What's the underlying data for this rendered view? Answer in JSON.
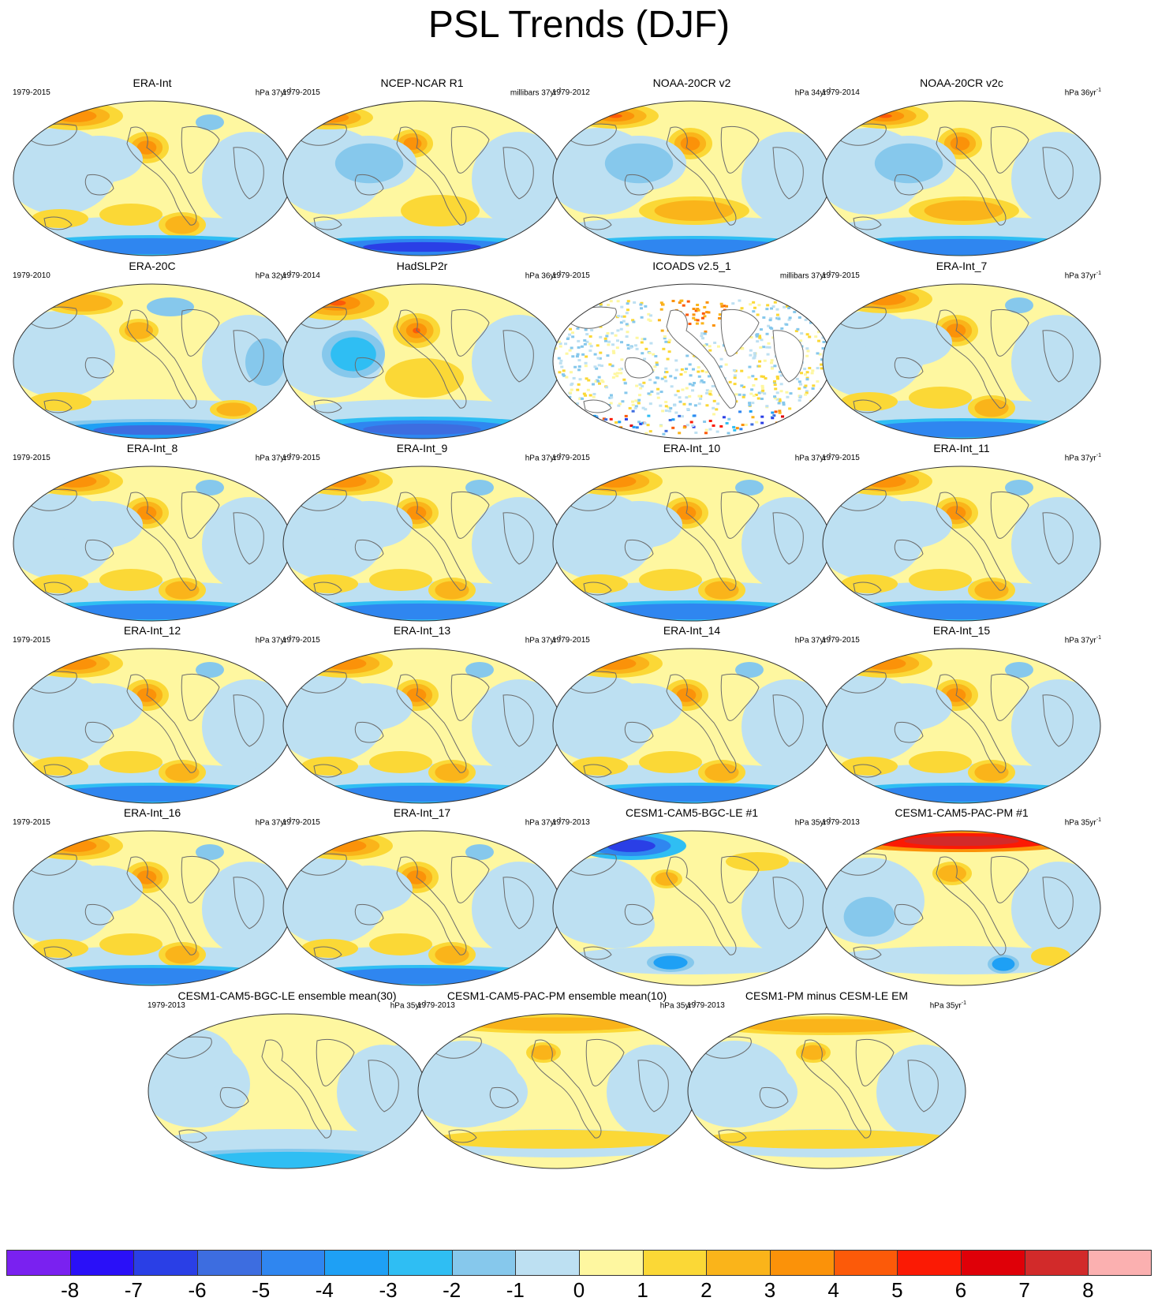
{
  "title": "PSL Trends (DJF)",
  "panels": [
    {
      "title": "ERA-Int",
      "years": "1979-2015",
      "units_prefix": "hPa 37yr",
      "style": "era",
      "hi": 4.5,
      "lo": -4.5
    },
    {
      "title": "NCEP-NCAR R1",
      "years": "1979-2015",
      "units_prefix": "millibars 37yr",
      "style": "ncep",
      "hi": 4,
      "lo": -7
    },
    {
      "title": "NOAA-20CR v2",
      "years": "1979-2012",
      "units_prefix": "hPa 34yr",
      "style": "noaa",
      "hi": 5,
      "lo": -5
    },
    {
      "title": "NOAA-20CR v2c",
      "years": "1979-2014",
      "units_prefix": "hPa 36yr",
      "style": "noaa",
      "hi": 6,
      "lo": -5
    },
    {
      "title": "ERA-20C",
      "years": "1979-2010",
      "units_prefix": "hPa 32yr",
      "style": "era20c",
      "hi": 3,
      "lo": -6
    },
    {
      "title": "HadSLP2r",
      "years": "1979-2014",
      "units_prefix": "hPa 36yr",
      "style": "had",
      "hi": 5.5,
      "lo": -6
    },
    {
      "title": "ICOADS v2.5_1",
      "years": "1979-2015",
      "units_prefix": "millibars 37yr",
      "style": "icoads",
      "hi": 6,
      "lo": -6
    },
    {
      "title": "ERA-Int_7",
      "years": "1979-2015",
      "units_prefix": "hPa 37yr",
      "style": "era",
      "hi": 4.5,
      "lo": -4.5
    },
    {
      "title": "ERA-Int_8",
      "years": "1979-2015",
      "units_prefix": "hPa 37yr",
      "style": "era",
      "hi": 4.5,
      "lo": -4.5
    },
    {
      "title": "ERA-Int_9",
      "years": "1979-2015",
      "units_prefix": "hPa 37yr",
      "style": "era",
      "hi": 4.5,
      "lo": -4.5
    },
    {
      "title": "ERA-Int_10",
      "years": "1979-2015",
      "units_prefix": "hPa 37yr",
      "style": "era",
      "hi": 4.5,
      "lo": -4.5
    },
    {
      "title": "ERA-Int_11",
      "years": "1979-2015",
      "units_prefix": "hPa 37yr",
      "style": "era",
      "hi": 4.5,
      "lo": -4.5
    },
    {
      "title": "ERA-Int_12",
      "years": "1979-2015",
      "units_prefix": "hPa 37yr",
      "style": "era",
      "hi": 4.5,
      "lo": -4.5
    },
    {
      "title": "ERA-Int_13",
      "years": "1979-2015",
      "units_prefix": "hPa 37yr",
      "style": "era",
      "hi": 4.5,
      "lo": -4.5
    },
    {
      "title": "ERA-Int_14",
      "years": "1979-2015",
      "units_prefix": "hPa 37yr",
      "style": "era",
      "hi": 4.5,
      "lo": -4.5
    },
    {
      "title": "ERA-Int_15",
      "years": "1979-2015",
      "units_prefix": "hPa 37yr",
      "style": "era",
      "hi": 4.5,
      "lo": -4.5
    },
    {
      "title": "ERA-Int_16",
      "years": "1979-2015",
      "units_prefix": "hPa 37yr",
      "style": "era",
      "hi": 4.5,
      "lo": -4.5
    },
    {
      "title": "ERA-Int_17",
      "years": "1979-2015",
      "units_prefix": "hPa 37yr",
      "style": "era",
      "hi": 4.5,
      "lo": -4.5
    },
    {
      "title": "CESM1-CAM5-BGC-LE #1",
      "years": "1979-2013",
      "units_prefix": "hPa 35yr",
      "style": "bgc1",
      "hi": 3,
      "lo": -7
    },
    {
      "title": "CESM1-CAM5-PAC-PM #1",
      "years": "1979-2013",
      "units_prefix": "hPa 35yr",
      "style": "pac1",
      "hi": 7.5,
      "lo": -5
    },
    {
      "title": "CESM1-CAM5-BGC-LE ensemble mean(30)",
      "years": "1979-2013",
      "units_prefix": "hPa 35yr",
      "style": "bgcem",
      "hi": 1,
      "lo": -3
    },
    {
      "title": "CESM1-CAM5-PAC-PM ensemble mean(10)",
      "years": "1979-2013",
      "units_prefix": "hPa 35yr",
      "style": "pacem",
      "hi": 3,
      "lo": -2
    },
    {
      "title": "CESM1-PM minus CESM-LE EM",
      "years": "1979-2013",
      "units_prefix": "hPa 35yr",
      "style": "diffem",
      "hi": 3,
      "lo": -1
    }
  ],
  "units_exponent": "-1",
  "colorbar": {
    "labels": [
      "-8",
      "-7",
      "-6",
      "-5",
      "-4",
      "-3",
      "-2",
      "-1",
      "0",
      "1",
      "2",
      "3",
      "4",
      "5",
      "6",
      "7",
      "8"
    ],
    "colors": [
      "#7a21f0",
      "#2a10f8",
      "#2a3fe6",
      "#3d6de0",
      "#2f86f0",
      "#1ea0f5",
      "#2fbef3",
      "#86c8ec",
      "#bde0f2",
      "#fef7a0",
      "#fbd836",
      "#fab41a",
      "#fb9209",
      "#fc5a09",
      "#fb1a04",
      "#df0008",
      "#d22a2a",
      "#fbb0b0"
    ]
  }
}
